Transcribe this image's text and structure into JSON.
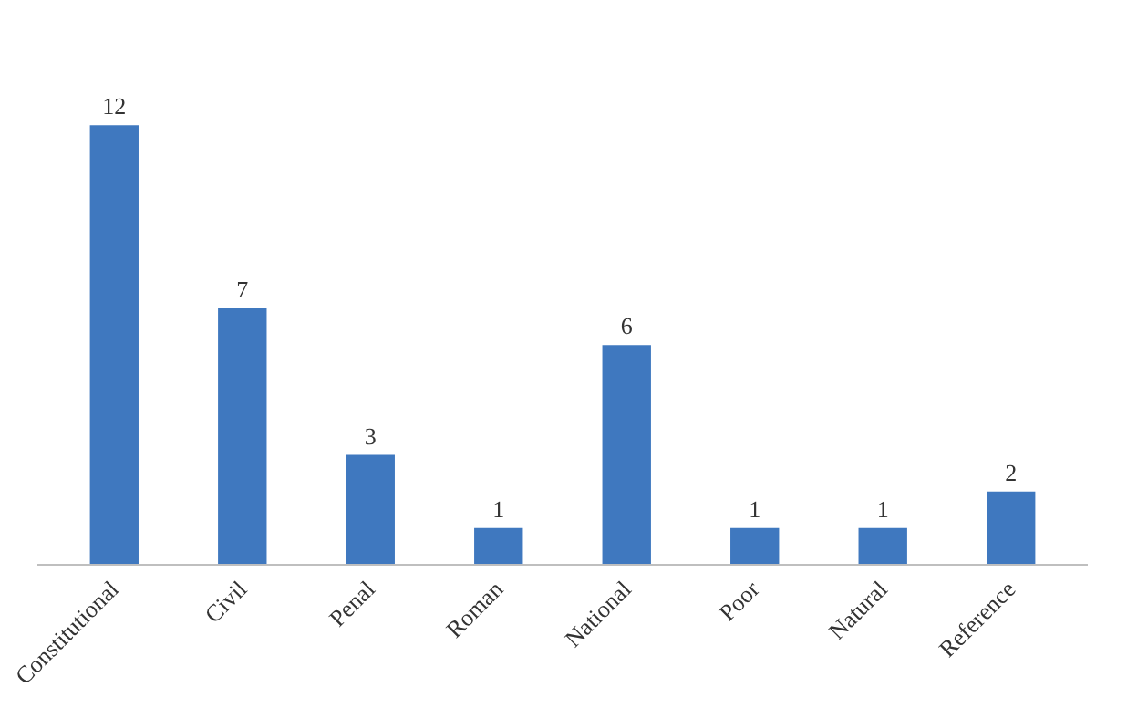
{
  "chart_data": {
    "type": "bar",
    "categories": [
      "Constitutional",
      "Civil",
      "Penal",
      "Roman",
      "National",
      "Poor",
      "Natural",
      "Reference"
    ],
    "values": [
      12,
      7,
      3,
      1,
      6,
      1,
      1,
      2
    ],
    "color": "#3f78bf",
    "data_labels": true
  }
}
